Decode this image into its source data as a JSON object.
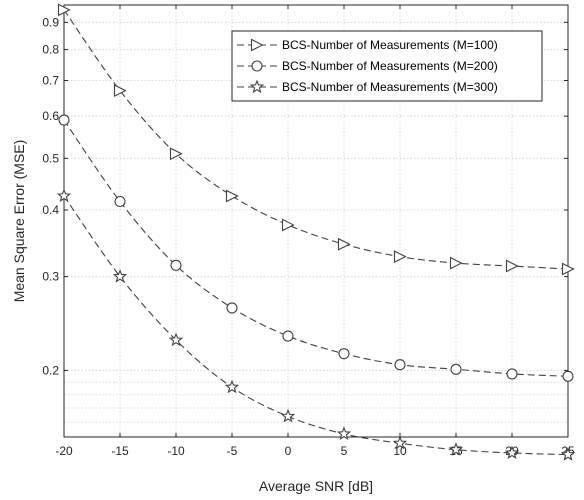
{
  "chart_data": {
    "type": "line",
    "title": "",
    "xlabel": "Average SNR [dB]",
    "ylabel": "Mean Square Error (MSE)",
    "x": [
      -20,
      -15,
      -10,
      -5,
      0,
      5,
      10,
      15,
      20,
      25
    ],
    "xlim": [
      -20,
      25
    ],
    "ylim": [
      0.15,
      0.97
    ],
    "yscale": "log",
    "xticks": [
      "-20",
      "-15",
      "-10",
      "-5",
      "0",
      "5",
      "10",
      "15",
      "20",
      "25"
    ],
    "yticks": [
      {
        "value": 0.2,
        "label": "0.2"
      },
      {
        "value": 0.3,
        "label": "0.3"
      },
      {
        "value": 0.4,
        "label": "0.4"
      },
      {
        "value": 0.5,
        "label": "0.5"
      },
      {
        "value": 0.6,
        "label": "0.6"
      },
      {
        "value": 0.7,
        "label": "0.7"
      },
      {
        "value": 0.8,
        "label": "0.8"
      },
      {
        "value": 0.9,
        "label": "0.9"
      }
    ],
    "grid": true,
    "legend_position": "top-right",
    "series": [
      {
        "name": "BCS-Number of Measurements (M=100)",
        "marker": "triangle-right",
        "line": "dashed",
        "values": [
          0.95,
          0.67,
          0.51,
          0.425,
          0.375,
          0.345,
          0.327,
          0.318,
          0.314,
          0.31
        ]
      },
      {
        "name": "BCS-Number of Measurements (M=200)",
        "marker": "circle",
        "line": "dashed",
        "values": [
          0.59,
          0.415,
          0.315,
          0.262,
          0.232,
          0.215,
          0.205,
          0.201,
          0.197,
          0.195
        ]
      },
      {
        "name": "BCS-Number of Measurements (M=300)",
        "marker": "star",
        "line": "dashed",
        "values": [
          0.425,
          0.3,
          0.228,
          0.186,
          0.164,
          0.152,
          0.146,
          0.142,
          0.14,
          0.139
        ]
      }
    ],
    "colors": {
      "line": "#404040",
      "grid": "#d9d9d9",
      "axis": "#262626"
    }
  }
}
